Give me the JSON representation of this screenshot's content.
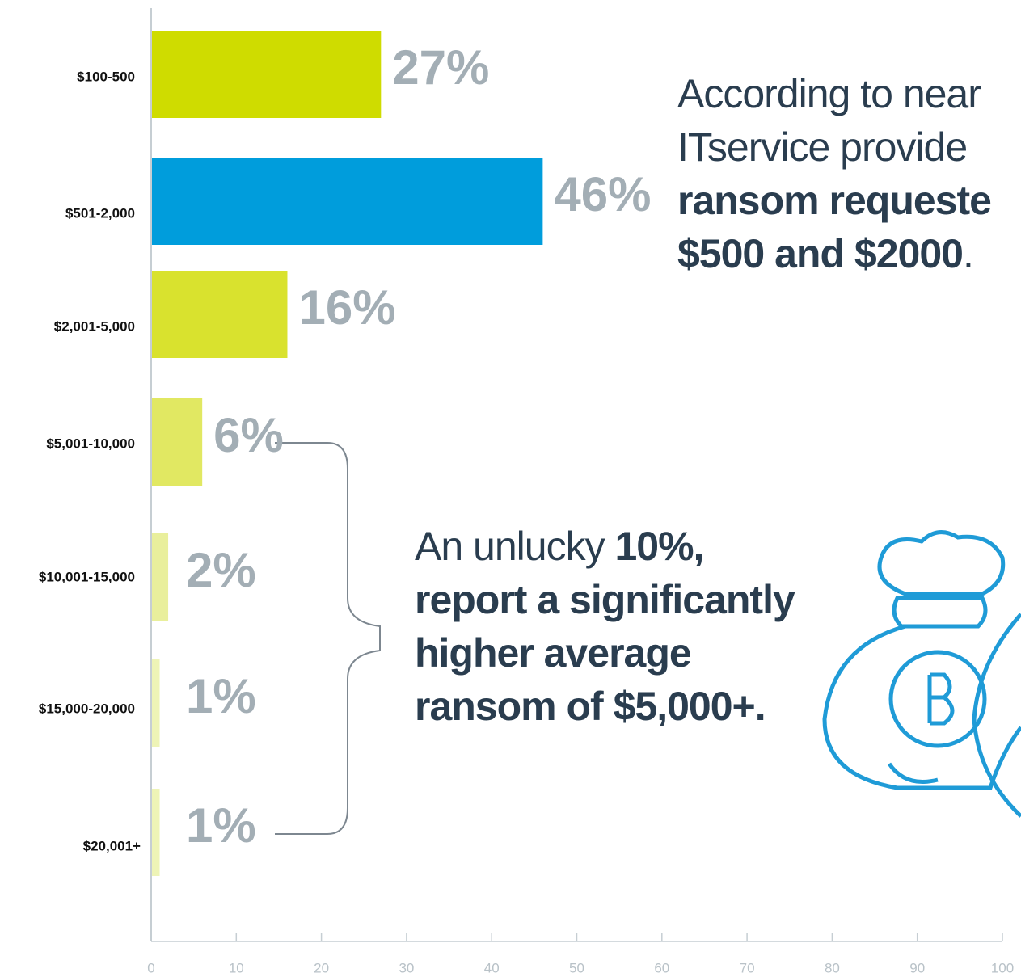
{
  "chart_data": {
    "type": "bar",
    "orientation": "horizontal",
    "categories": [
      "$100-500",
      "$501-2,000",
      "$2,001-5,000",
      "$5,001-10,000",
      "$10,001-15,000",
      "$15,000-20,000",
      "$20,001+"
    ],
    "values": [
      27,
      46,
      16,
      6,
      2,
      1,
      1
    ],
    "value_labels": [
      "27%",
      "46%",
      "16%",
      "6%",
      "2%",
      "1%",
      "1%"
    ],
    "colors": [
      "#cfdc00",
      "#009ddc",
      "#d9e22e",
      "#e1e862",
      "#e9ef9c",
      "#eef4b6",
      "#eef4b6"
    ],
    "xlim": [
      0,
      100
    ],
    "xticks": [
      0,
      10,
      20,
      30,
      40,
      50,
      60,
      70,
      80,
      90,
      100
    ],
    "annotations": [
      {
        "lines": [
          [
            {
              "text": "According to near"
            }
          ],
          [
            {
              "text": "ITservice provide"
            }
          ],
          [
            {
              "text": "ransom requeste",
              "bold": true
            }
          ],
          [
            {
              "text": "$500 and $2000",
              "bold": true
            },
            {
              "text": "."
            }
          ]
        ]
      },
      {
        "lines": [
          [
            {
              "text": "An unlucky "
            },
            {
              "text": "10%,",
              "bold": true
            }
          ],
          [
            {
              "text": "report a significantly",
              "bold": true
            }
          ],
          [
            {
              "text": "higher average",
              "bold": true
            }
          ],
          [
            {
              "text": "ransom of $5,000+.",
              "bold": true
            }
          ]
        ]
      }
    ]
  }
}
